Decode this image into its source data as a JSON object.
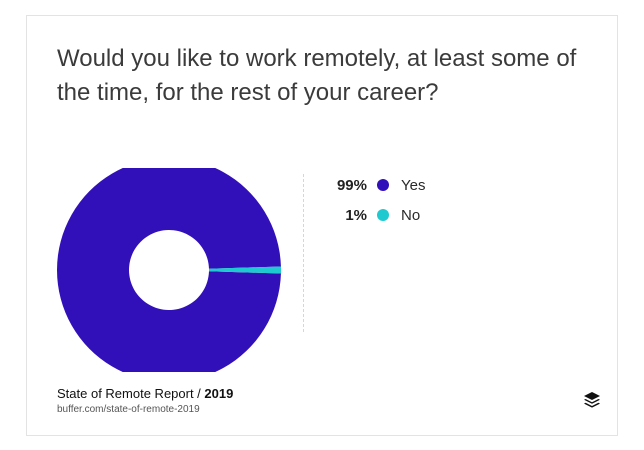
{
  "title": "Would you like to work remotely, at least some of the time, for the rest of your career?",
  "footer": {
    "report": "State of Remote Report /",
    "year": "2019",
    "url": "buffer.com/state-of-remote-2019"
  },
  "logo_icon": "buffer-logo-icon",
  "colors": {
    "yes": "#3210b9",
    "no": "#1ec9cf"
  },
  "chart_data": {
    "type": "pie",
    "title": "Would you like to work remotely, at least some of the time, for the rest of your career?",
    "categories": [
      "Yes",
      "No"
    ],
    "values": [
      99,
      1
    ],
    "labels": [
      "99%",
      "1%"
    ],
    "colors": [
      "#3210b9",
      "#1ec9cf"
    ],
    "donut": true,
    "legend": "right"
  }
}
